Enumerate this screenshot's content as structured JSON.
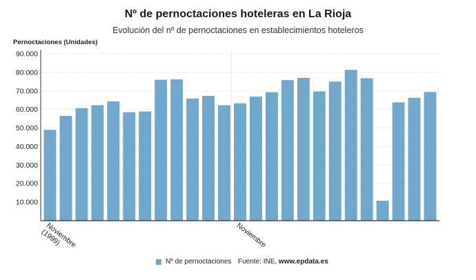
{
  "header": {
    "title": "Nº de pernoctaciones hoteleras en La Rioja",
    "subtitle": "Evolución del nº de pernoctaciones en establecimientos hoteleros"
  },
  "footer": {
    "legend_label": "Nº de pernoctaciones",
    "source_prefix": "Fuente: INE, ",
    "source_site": "www.epdata.es"
  },
  "colors": {
    "bar": "#6fa8cc",
    "axis": "#333333",
    "grid": "#d0d0d0"
  },
  "chart_data": {
    "type": "bar",
    "title": "Nº de pernoctaciones hoteleras en La Rioja",
    "subtitle": "Evolución del nº de pernoctaciones en establecimientos hoteleros",
    "ylabel": "Pernoctaciones (Unidades)",
    "ylim": [
      0,
      90000
    ],
    "yticks": [
      10000,
      20000,
      30000,
      40000,
      50000,
      60000,
      70000,
      80000,
      90000
    ],
    "ytick_labels": [
      "10.000",
      "20.000",
      "30.000",
      "40.000",
      "50.000",
      "60.000",
      "70.000",
      "80.000",
      "90.000"
    ],
    "grid": "horizontal",
    "legend_position": "bottom",
    "categories": [
      "Noviembre (1999)",
      "",
      "",
      "",
      "",
      "",
      "",
      "",
      "",
      "",
      "",
      "",
      "Noviembre",
      "",
      "",
      "",
      "",
      "",
      "",
      "",
      "",
      "",
      "",
      "",
      ""
    ],
    "x_tick_labels": [
      {
        "index": 0,
        "label": "Noviembre (1999)"
      },
      {
        "index": 12,
        "label": "Noviembre"
      }
    ],
    "series": [
      {
        "name": "Nº de pernoctaciones",
        "values": [
          49000,
          56500,
          60700,
          62300,
          64300,
          58500,
          58900,
          76000,
          76200,
          65900,
          67300,
          62300,
          63300,
          66900,
          69300,
          75800,
          77000,
          69700,
          75000,
          81300,
          76800,
          10800,
          63800,
          66300,
          69400
        ]
      }
    ]
  }
}
